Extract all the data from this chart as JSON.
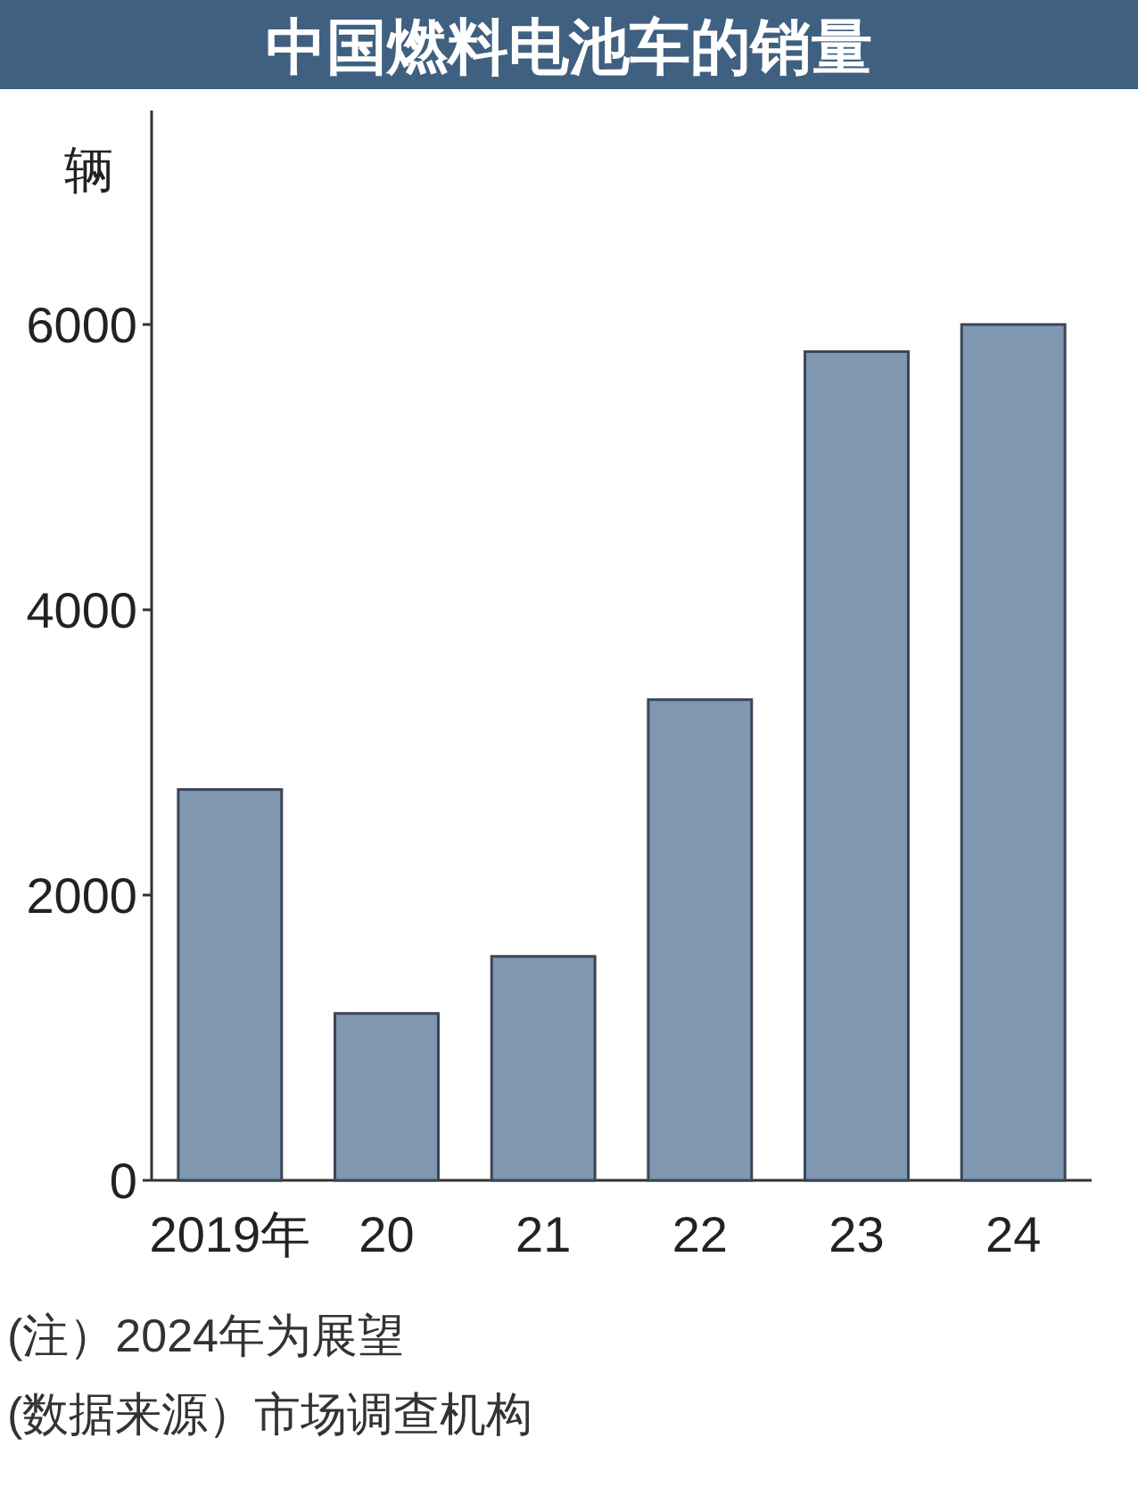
{
  "chart_data": {
    "type": "bar",
    "title": "中国燃料电池车的销量",
    "ylabel": "辆",
    "categories": [
      "2019年",
      "20",
      "21",
      "22",
      "23",
      "24"
    ],
    "values": [
      2740,
      1170,
      1570,
      3370,
      5810,
      6000
    ],
    "color": "#7f97b0",
    "ylim": [
      0,
      7500
    ],
    "yticks": [
      0,
      2000,
      4000,
      6000
    ],
    "annotations": [
      "(注）2024年为展望",
      "(数据来源）市场调查机构"
    ]
  }
}
